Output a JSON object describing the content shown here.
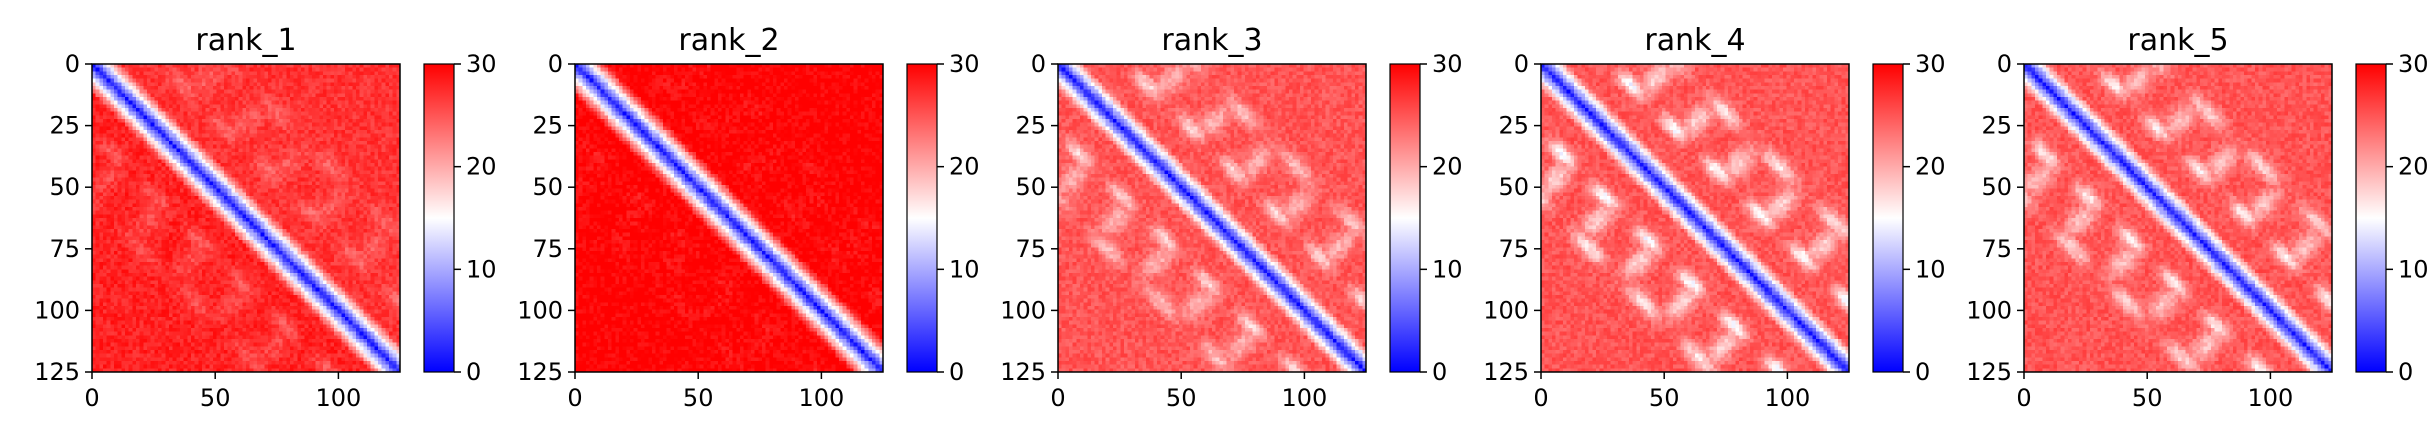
{
  "chart_data": [
    {
      "type": "heatmap",
      "title": "rank_1",
      "xticks": [
        0,
        50,
        100
      ],
      "yticks": [
        0,
        25,
        50,
        75,
        100,
        125
      ],
      "xlim": [
        0,
        125
      ],
      "ylim": [
        0,
        125
      ],
      "colorbar": {
        "ticks": [
          0,
          10,
          20,
          30
        ],
        "range": [
          0,
          30
        ],
        "colormap": "bwr",
        "colors": [
          "#0000ff",
          "#ffffff",
          "#ff0000"
        ]
      },
      "pattern": {
        "diagonal_band_width": 10,
        "background_level": 27,
        "off_diagonal_contact_strength": 0.25,
        "lower_triangle_level": 28
      }
    },
    {
      "type": "heatmap",
      "title": "rank_2",
      "xticks": [
        0,
        50,
        100
      ],
      "yticks": [
        0,
        25,
        50,
        75,
        100,
        125
      ],
      "xlim": [
        0,
        125
      ],
      "ylim": [
        0,
        125
      ],
      "colorbar": {
        "ticks": [
          0,
          10,
          20,
          30
        ],
        "range": [
          0,
          30
        ],
        "colormap": "bwr",
        "colors": [
          "#0000ff",
          "#ffffff",
          "#ff0000"
        ]
      },
      "pattern": {
        "diagonal_band_width": 10,
        "background_level": 30,
        "off_diagonal_contact_strength": 0.1,
        "lower_triangle_level": 30
      }
    },
    {
      "type": "heatmap",
      "title": "rank_3",
      "xticks": [
        0,
        50,
        100
      ],
      "yticks": [
        0,
        25,
        50,
        75,
        100,
        125
      ],
      "xlim": [
        0,
        125
      ],
      "ylim": [
        0,
        125
      ],
      "colorbar": {
        "ticks": [
          0,
          10,
          20,
          30
        ],
        "range": [
          0,
          30
        ],
        "colormap": "bwr",
        "colors": [
          "#0000ff",
          "#ffffff",
          "#ff0000"
        ]
      },
      "pattern": {
        "diagonal_band_width": 10,
        "background_level": 25,
        "off_diagonal_contact_strength": 0.55,
        "lower_triangle_level": 25
      }
    },
    {
      "type": "heatmap",
      "title": "rank_4",
      "xticks": [
        0,
        50,
        100
      ],
      "yticks": [
        0,
        25,
        50,
        75,
        100,
        125
      ],
      "xlim": [
        0,
        125
      ],
      "ylim": [
        0,
        125
      ],
      "colorbar": {
        "ticks": [
          0,
          10,
          20,
          30
        ],
        "range": [
          0,
          30
        ],
        "colormap": "bwr",
        "colors": [
          "#0000ff",
          "#ffffff",
          "#ff0000"
        ]
      },
      "pattern": {
        "diagonal_band_width": 10,
        "background_level": 25,
        "off_diagonal_contact_strength": 0.75,
        "lower_triangle_level": 25
      }
    },
    {
      "type": "heatmap",
      "title": "rank_5",
      "xticks": [
        0,
        50,
        100
      ],
      "yticks": [
        0,
        25,
        50,
        75,
        100,
        125
      ],
      "xlim": [
        0,
        125
      ],
      "ylim": [
        0,
        125
      ],
      "colorbar": {
        "ticks": [
          0,
          10,
          20,
          30
        ],
        "range": [
          0,
          30
        ],
        "colormap": "bwr",
        "colors": [
          "#0000ff",
          "#ffffff",
          "#ff0000"
        ]
      },
      "pattern": {
        "diagonal_band_width": 10,
        "background_level": 25,
        "off_diagonal_contact_strength": 0.65,
        "lower_triangle_level": 25
      }
    }
  ]
}
